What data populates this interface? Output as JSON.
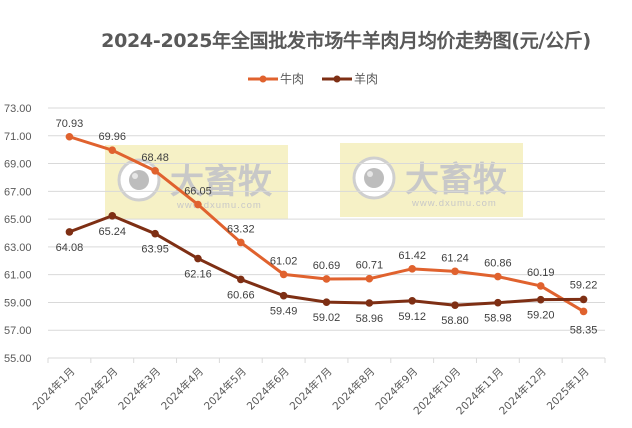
{
  "chart_data": {
    "type": "line",
    "title": "2024-2025年全国批发市场牛羊肉月均价走势图(元/公斤)",
    "xlabel": "",
    "ylabel": "",
    "ylim": [
      55,
      73
    ],
    "yticks": [
      "55.00",
      "57.00",
      "59.00",
      "61.00",
      "63.00",
      "65.00",
      "67.00",
      "69.00",
      "71.00",
      "73.00"
    ],
    "grid": true,
    "legend_position": "top",
    "categories": [
      "2024年1月",
      "2024年2月",
      "2024年3月",
      "2024年4月",
      "2024年5月",
      "2024年6月",
      "2024年7月",
      "2024年8月",
      "2024年9月",
      "2024年10月",
      "2024年11月",
      "2024年12月",
      "2025年1月"
    ],
    "series": [
      {
        "name": "牛肉",
        "color": "#E0622E",
        "values": [
          70.93,
          69.96,
          68.48,
          66.05,
          63.32,
          61.02,
          60.69,
          60.71,
          61.42,
          61.24,
          60.86,
          60.19,
          58.35
        ],
        "labels": [
          "70.93",
          "69.96",
          "68.48",
          "66.05",
          "63.32",
          "61.02",
          "60.69",
          "60.71",
          "61.42",
          "61.24",
          "60.86",
          "60.19",
          "58.35"
        ]
      },
      {
        "name": "羊肉",
        "color": "#7E2F14",
        "values": [
          64.08,
          65.24,
          63.95,
          62.16,
          60.66,
          59.49,
          59.02,
          58.96,
          59.12,
          58.8,
          58.98,
          59.2,
          59.22
        ],
        "labels": [
          "64.08",
          "65.24",
          "63.95",
          "62.16",
          "60.66",
          "59.49",
          "59.02",
          "58.96",
          "59.12",
          "58.80",
          "58.98",
          "59.20",
          "59.22"
        ]
      }
    ]
  },
  "watermark": {
    "text": "大畜牧",
    "url": "www.dxumu.com",
    "background": "#F5EFC0"
  },
  "colors": {
    "beef": "#E0622E",
    "mutton": "#7E2F14",
    "grid": "#D9D9D9",
    "text": "#595959"
  }
}
